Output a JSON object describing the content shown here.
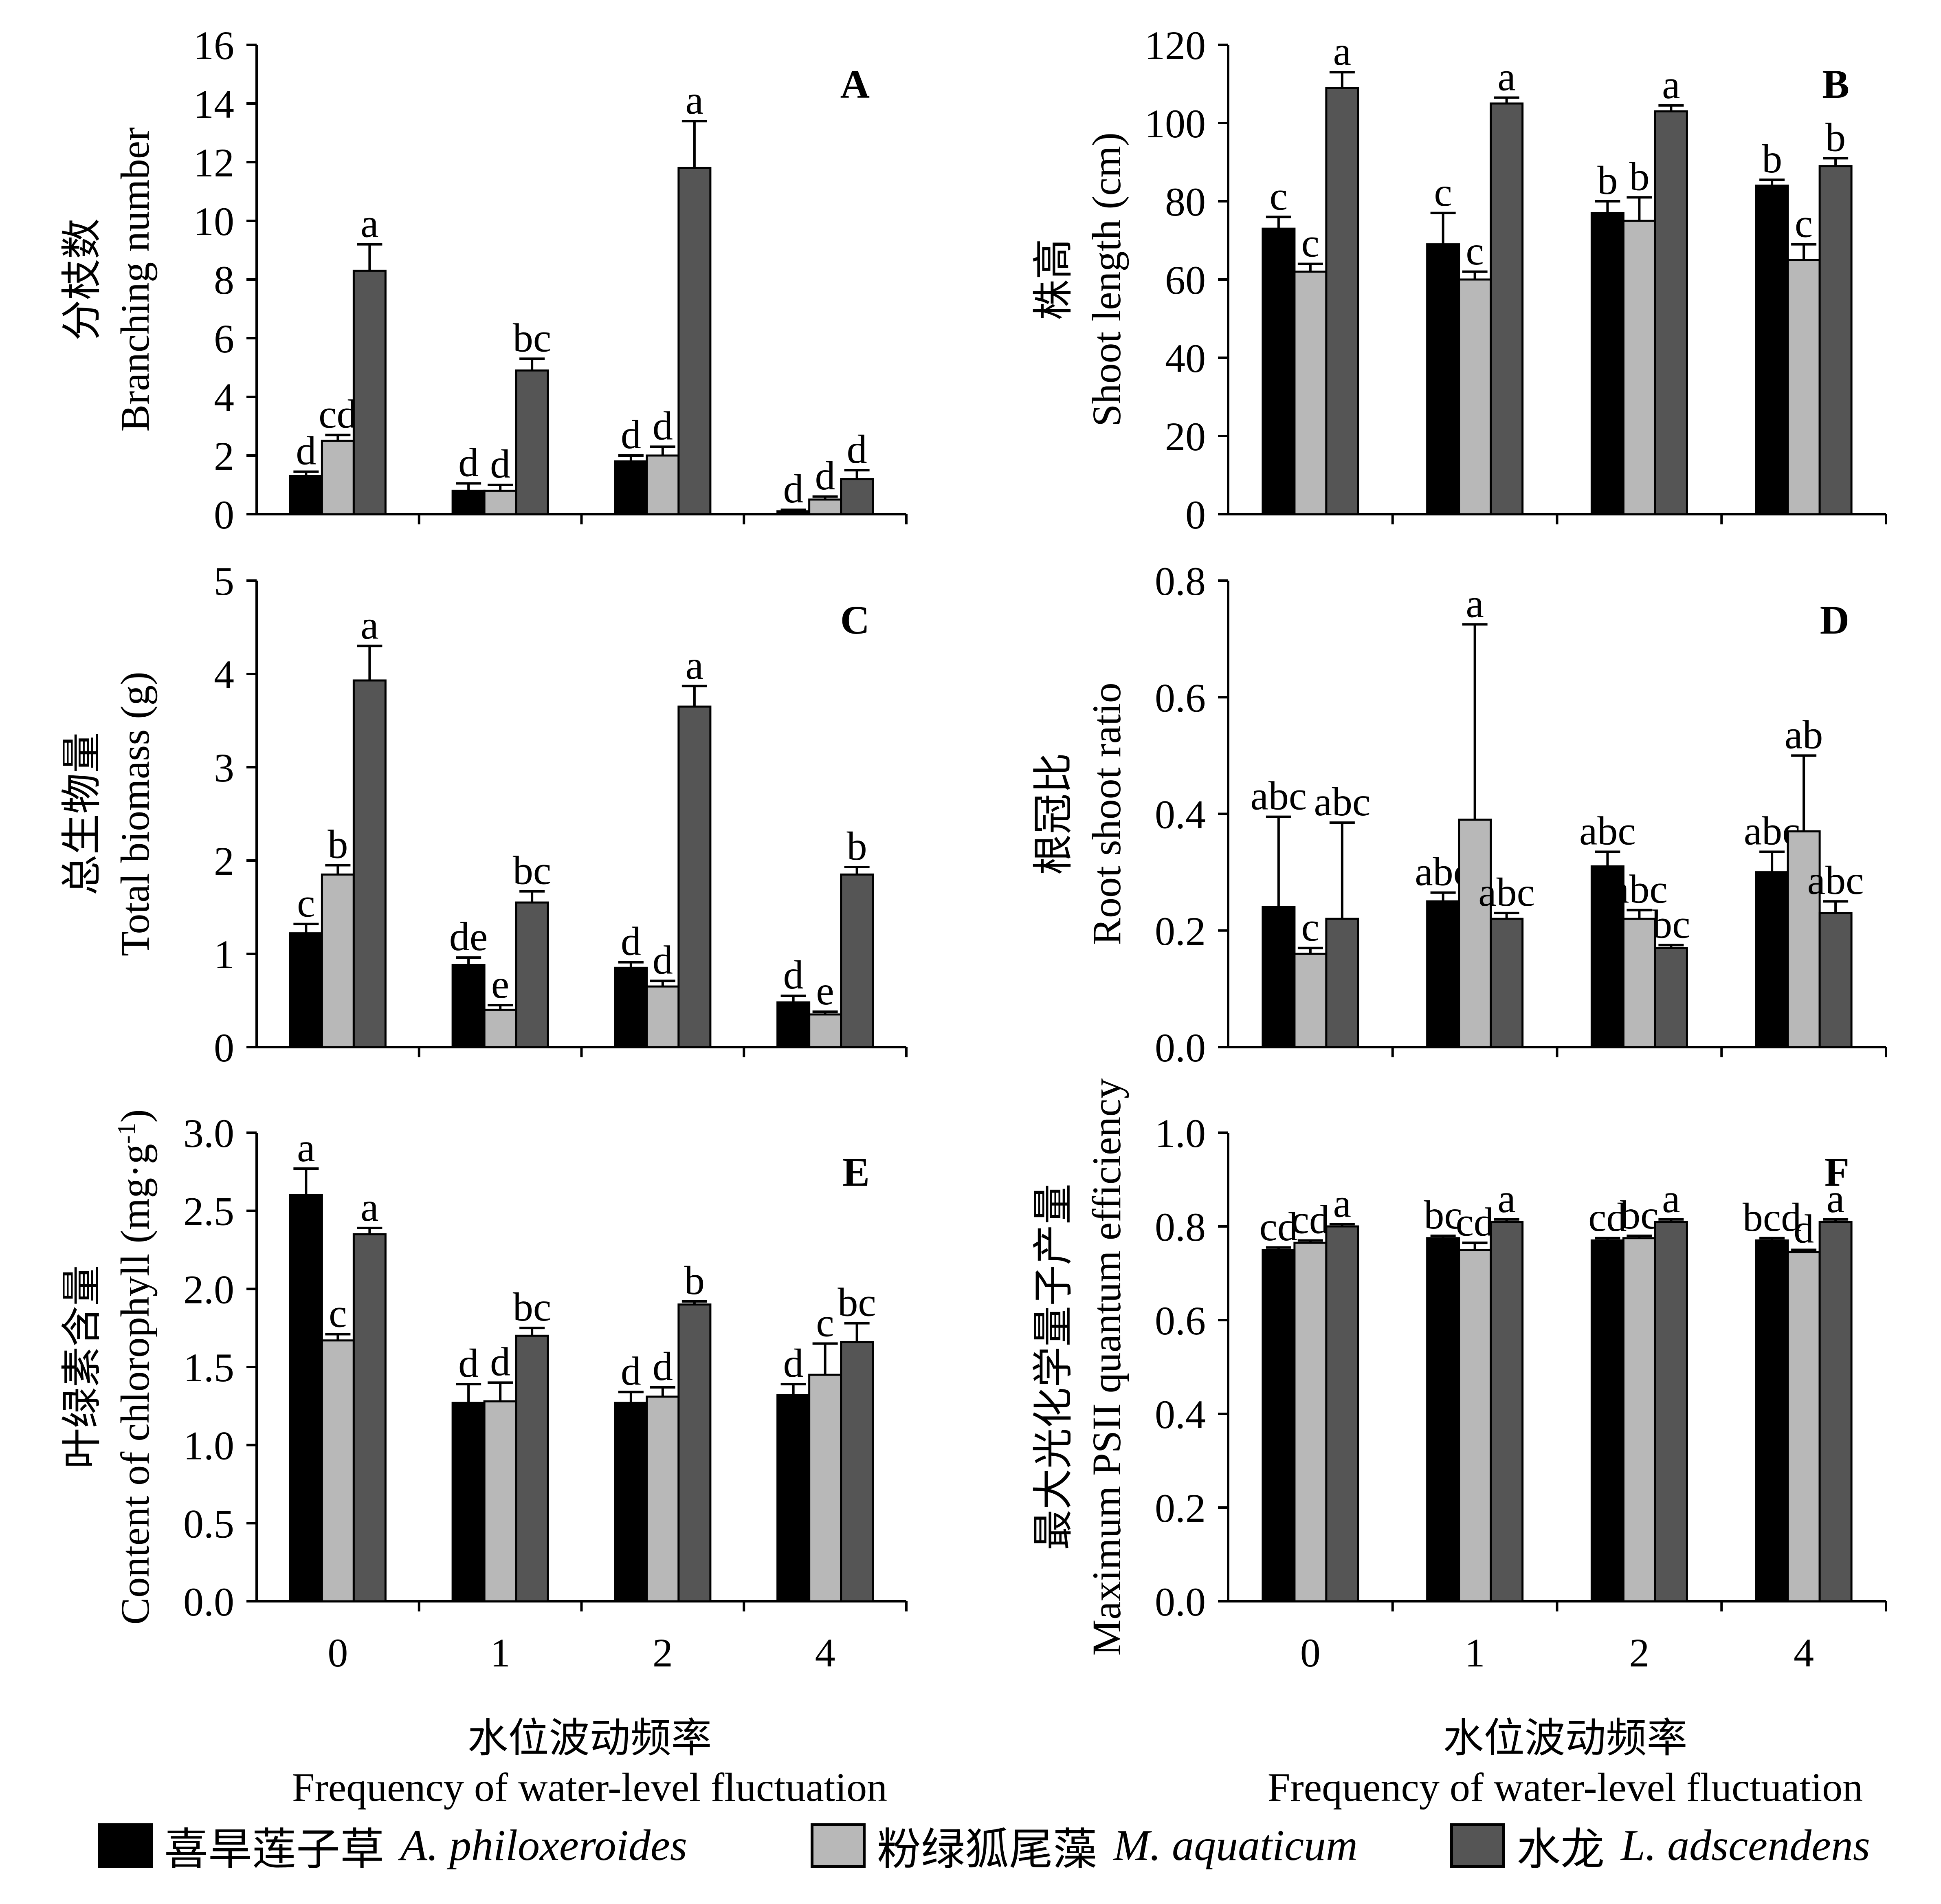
{
  "categories": [
    "0",
    "1",
    "2",
    "4"
  ],
  "series_colors": [
    "#000000",
    "#b8b8b8",
    "#555555"
  ],
  "legend": [
    {
      "cn": "喜旱莲子草",
      "latin": "A. philoxeroides",
      "color": "#000000"
    },
    {
      "cn": "粉绿狐尾藻",
      "latin": "M. aquaticum",
      "color": "#b8b8b8"
    },
    {
      "cn": "水龙",
      "latin": "L. adscendens",
      "color": "#555555"
    }
  ],
  "xlabel_cn": "水位波动频率",
  "xlabel_en": "Frequency of water-level fluctuation",
  "chart_data": [
    {
      "type": "bar",
      "panel": "A",
      "ylabel_cn": "分枝数",
      "ylabel_en": "Branching  number",
      "ylim": [
        0,
        16
      ],
      "yticks": [
        "0",
        "2",
        "4",
        "6",
        "8",
        "10",
        "12",
        "14",
        "16"
      ],
      "categories": [
        "0",
        "1",
        "2",
        "4"
      ],
      "series": [
        {
          "name": "A. philoxeroides",
          "values": [
            1.3,
            0.8,
            1.8,
            0.1
          ],
          "errors": [
            0.15,
            0.25,
            0.2,
            0.05
          ],
          "labels": [
            "d",
            "d",
            "d",
            "d"
          ]
        },
        {
          "name": "M. aquaticum",
          "values": [
            2.5,
            0.8,
            2.0,
            0.5
          ],
          "errors": [
            0.2,
            0.2,
            0.3,
            0.1
          ],
          "labels": [
            "cd",
            "d",
            "d",
            "d"
          ]
        },
        {
          "name": "L. adscendens",
          "values": [
            8.3,
            4.9,
            11.8,
            1.2
          ],
          "errors": [
            0.9,
            0.4,
            1.6,
            0.3
          ],
          "labels": [
            "a",
            "bc",
            "a",
            "d"
          ]
        }
      ]
    },
    {
      "type": "bar",
      "panel": "B",
      "ylabel_cn": "株高",
      "ylabel_en": "Shoot length (cm)",
      "ylim": [
        0,
        120
      ],
      "yticks": [
        "0",
        "20",
        "40",
        "60",
        "80",
        "100",
        "120"
      ],
      "categories": [
        "0",
        "1",
        "2",
        "4"
      ],
      "series": [
        {
          "name": "A. philoxeroides",
          "values": [
            73,
            69,
            77,
            84
          ],
          "errors": [
            3,
            8,
            3,
            1.5
          ],
          "labels": [
            "c",
            "c",
            "b",
            "b"
          ]
        },
        {
          "name": "M. aquaticum",
          "values": [
            62,
            60,
            75,
            65
          ],
          "errors": [
            2,
            2,
            6,
            4
          ],
          "labels": [
            "c",
            "c",
            "b",
            "c"
          ]
        },
        {
          "name": "L. adscendens",
          "values": [
            109,
            105,
            103,
            89
          ],
          "errors": [
            4,
            1.5,
            1.5,
            2
          ],
          "labels": [
            "a",
            "a",
            "a",
            "b"
          ]
        }
      ]
    },
    {
      "type": "bar",
      "panel": "C",
      "ylabel_cn": "总生物量",
      "ylabel_en": "Total biomass (g)",
      "ylim": [
        0,
        5
      ],
      "yticks": [
        "0",
        "1",
        "2",
        "3",
        "4",
        "5"
      ],
      "categories": [
        "0",
        "1",
        "2",
        "4"
      ],
      "series": [
        {
          "name": "A. philoxeroides",
          "values": [
            1.22,
            0.88,
            0.85,
            0.48
          ],
          "errors": [
            0.1,
            0.08,
            0.06,
            0.07
          ],
          "labels": [
            "c",
            "de",
            "d",
            "d"
          ]
        },
        {
          "name": "M. aquaticum",
          "values": [
            1.85,
            0.4,
            0.65,
            0.35
          ],
          "errors": [
            0.1,
            0.05,
            0.06,
            0.03
          ],
          "labels": [
            "b",
            "e",
            "d",
            "e"
          ]
        },
        {
          "name": "L. adscendens",
          "values": [
            3.93,
            1.55,
            3.65,
            1.85
          ],
          "errors": [
            0.37,
            0.12,
            0.22,
            0.08
          ],
          "labels": [
            "a",
            "bc",
            "a",
            "b"
          ]
        }
      ]
    },
    {
      "type": "bar",
      "panel": "D",
      "ylabel_cn": "根冠比",
      "ylabel_en": "Root  shoot  ratio",
      "ylim": [
        0,
        0.8
      ],
      "yticks": [
        "0.0",
        "0.2",
        "0.4",
        "0.6",
        "0.8"
      ],
      "categories": [
        "0",
        "1",
        "2",
        "4"
      ],
      "series": [
        {
          "name": "A. philoxeroides",
          "values": [
            0.24,
            0.25,
            0.31,
            0.3
          ],
          "errors": [
            0.155,
            0.015,
            0.025,
            0.035
          ],
          "labels": [
            "abc",
            "abc",
            "abc",
            "abc"
          ]
        },
        {
          "name": "M. aquaticum",
          "values": [
            0.16,
            0.39,
            0.22,
            0.37
          ],
          "errors": [
            0.01,
            0.335,
            0.015,
            0.13
          ],
          "labels": [
            "c",
            "a",
            "abc",
            "ab"
          ]
        },
        {
          "name": "L. adscendens",
          "values": [
            0.22,
            0.22,
            0.17,
            0.23
          ],
          "errors": [
            0.165,
            0.01,
            0.005,
            0.02
          ],
          "labels": [
            "abc",
            "abc",
            "bc",
            "abc"
          ]
        }
      ]
    },
    {
      "type": "bar",
      "panel": "E",
      "ylabel_cn": "叶绿素含量",
      "ylabel_en": "Content of chlorophyll (mg·g",
      "ylabel_sup": "-1",
      "ylabel_close": ")",
      "ylim": [
        0,
        3.0
      ],
      "yticks": [
        "0.0",
        "0.5",
        "1.0",
        "1.5",
        "2.0",
        "2.5",
        "3.0"
      ],
      "categories": [
        "0",
        "1",
        "2",
        "4"
      ],
      "series": [
        {
          "name": "A. philoxeroides",
          "values": [
            2.6,
            1.27,
            1.27,
            1.32
          ],
          "errors": [
            0.17,
            0.12,
            0.07,
            0.07
          ],
          "labels": [
            "a",
            "d",
            "d",
            "d"
          ]
        },
        {
          "name": "M. aquaticum",
          "values": [
            1.67,
            1.28,
            1.31,
            1.45
          ],
          "errors": [
            0.04,
            0.12,
            0.06,
            0.2
          ],
          "labels": [
            "c",
            "d",
            "d",
            "c"
          ]
        },
        {
          "name": "L. adscendens",
          "values": [
            2.35,
            1.7,
            1.9,
            1.66
          ],
          "errors": [
            0.04,
            0.05,
            0.02,
            0.12
          ],
          "labels": [
            "a",
            "bc",
            "b",
            "bc"
          ]
        }
      ]
    },
    {
      "type": "bar",
      "panel": "F",
      "ylabel_cn": "最大光化学量子产量",
      "ylabel_en": "Maximum PSII quantum efficiency",
      "ylim": [
        0,
        1.0
      ],
      "yticks": [
        "0.0",
        "0.2",
        "0.4",
        "0.6",
        "0.8",
        "1.0"
      ],
      "categories": [
        "0",
        "1",
        "2",
        "4"
      ],
      "series": [
        {
          "name": "A. philoxeroides",
          "values": [
            0.75,
            0.775,
            0.77,
            0.77
          ],
          "errors": [
            0.005,
            0.005,
            0.005,
            0.005
          ],
          "labels": [
            "cd",
            "bc",
            "cd",
            "bcd"
          ]
        },
        {
          "name": "M. aquaticum",
          "values": [
            0.765,
            0.75,
            0.775,
            0.745
          ],
          "errors": [
            0.005,
            0.015,
            0.005,
            0.005
          ],
          "labels": [
            "cd",
            "cd",
            "bc",
            "d"
          ]
        },
        {
          "name": "L. adscendens",
          "values": [
            0.8,
            0.81,
            0.81,
            0.81
          ],
          "errors": [
            0.005,
            0.005,
            0.005,
            0.005
          ],
          "labels": [
            "a",
            "a",
            "a",
            "a"
          ]
        }
      ]
    }
  ]
}
